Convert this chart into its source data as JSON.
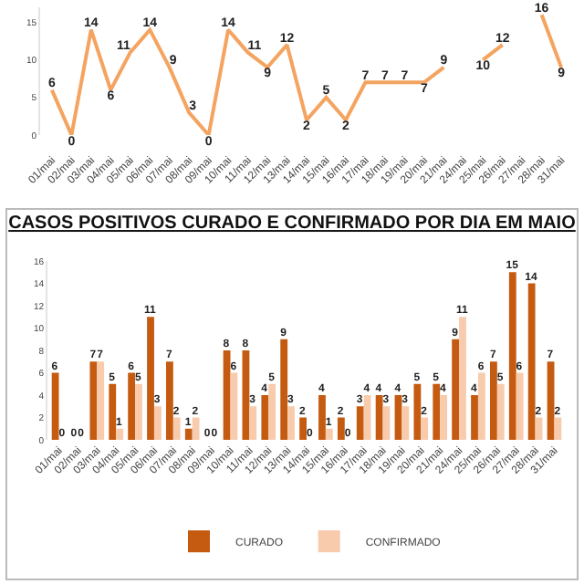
{
  "chart_data": [
    {
      "type": "line",
      "categories": [
        "01/mai",
        "02/mai",
        "03/mai",
        "04/mai",
        "05/mai",
        "06/mai",
        "07/mai",
        "08/mai",
        "09/mai",
        "10/mai",
        "11/mai",
        "12/mai",
        "13/mai",
        "14/mai",
        "15/mai",
        "16/mai",
        "17/mai",
        "18/mai",
        "19/mai",
        "20/mai",
        "21/mai",
        "24/mai",
        "25/mai",
        "26/mai",
        "27/mai",
        "28/mai",
        "31/mai"
      ],
      "series": [
        {
          "color": "#f4a460",
          "values": [
            6,
            0,
            14,
            6,
            11,
            14,
            9,
            3,
            0,
            14,
            11,
            9,
            12,
            2,
            5,
            2,
            7,
            7,
            7,
            7,
            9,
            null,
            10,
            12,
            null,
            16,
            9
          ]
        }
      ],
      "ylim": [
        0,
        17
      ],
      "yticks": [
        0,
        5,
        10,
        15
      ],
      "grid": false,
      "legend": false,
      "data_labels": true,
      "marker": "none"
    },
    {
      "type": "bar",
      "title": "CASOS POSITIVOS CURADO E CONFIRMADO POR DIA EM MAIO",
      "categories": [
        "01/mai",
        "02/mai",
        "03/mai",
        "04/mai",
        "05/mai",
        "06/mai",
        "07/mai",
        "08/mai",
        "09/mai",
        "10/mai",
        "11/mai",
        "12/mai",
        "13/mai",
        "14/mai",
        "15/mai",
        "16/mai",
        "17/mai",
        "18/mai",
        "19/mai",
        "20/mai",
        "21/mai",
        "24/mai",
        "25/mai",
        "26/mai",
        "27/mai",
        "28/mai",
        "31/mai"
      ],
      "series": [
        {
          "name": "CURADO",
          "color": "#c55a11",
          "values": [
            6,
            0,
            7,
            5,
            6,
            11,
            7,
            1,
            0,
            8,
            8,
            4,
            9,
            2,
            4,
            2,
            3,
            4,
            4,
            5,
            5,
            9,
            4,
            7,
            15,
            14,
            7
          ]
        },
        {
          "name": "CONFIRMADO",
          "color": "#f8cbad",
          "values": [
            0,
            0,
            7,
            1,
            5,
            3,
            2,
            2,
            0,
            6,
            3,
            5,
            3,
            0,
            1,
            0,
            4,
            3,
            3,
            2,
            4,
            11,
            6,
            5,
            6,
            2,
            2
          ]
        }
      ],
      "ylim": [
        0,
        16
      ],
      "yticks": [
        0,
        2,
        4,
        6,
        8,
        10,
        12,
        14,
        16
      ],
      "grid": false,
      "legend": "bottom",
      "data_labels": true
    }
  ]
}
